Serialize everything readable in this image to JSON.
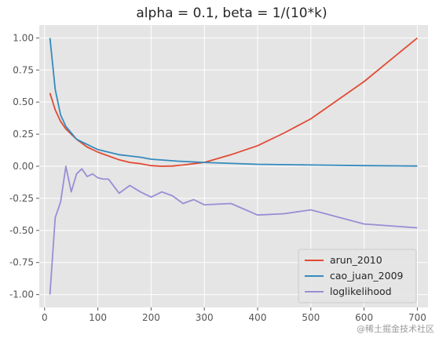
{
  "chart_data": {
    "type": "line",
    "title": "alpha = 0.1, beta = 1/(10*k)",
    "xlim": [
      -10,
      720
    ],
    "ylim": [
      -1.1,
      1.1
    ],
    "xticks": [
      0,
      100,
      200,
      300,
      400,
      500,
      600,
      700
    ],
    "yticks": [
      1.0,
      0.75,
      0.5,
      0.25,
      0.0,
      -0.25,
      -0.5,
      -0.75,
      -1.0
    ],
    "ytick_labels": [
      "1.00",
      "0.75",
      "0.50",
      "0.25",
      "0.00",
      "-0.25",
      "-0.50",
      "-0.75",
      "-1.00"
    ],
    "xtick_labels": [
      "0",
      "100",
      "200",
      "300",
      "400",
      "500",
      "600",
      "700"
    ],
    "grid": true,
    "legend_position": "bottom-right",
    "series": [
      {
        "name": "arun_2010",
        "color": "#E24A33",
        "x": [
          10,
          20,
          30,
          40,
          50,
          60,
          70,
          80,
          90,
          100,
          120,
          140,
          160,
          180,
          200,
          220,
          240,
          260,
          280,
          300,
          350,
          400,
          450,
          500,
          600,
          700
        ],
        "y": [
          0.57,
          0.44,
          0.35,
          0.29,
          0.25,
          0.21,
          0.18,
          0.15,
          0.13,
          0.11,
          0.08,
          0.05,
          0.03,
          0.02,
          0.005,
          0.0,
          0.002,
          0.01,
          0.02,
          0.03,
          0.09,
          0.16,
          0.26,
          0.37,
          0.66,
          1.0
        ]
      },
      {
        "name": "cao_juan_2009",
        "color": "#348ABD",
        "x": [
          10,
          20,
          30,
          40,
          50,
          60,
          70,
          80,
          90,
          100,
          120,
          140,
          160,
          180,
          200,
          250,
          300,
          400,
          500,
          600,
          700
        ],
        "y": [
          1.0,
          0.6,
          0.4,
          0.31,
          0.26,
          0.21,
          0.19,
          0.17,
          0.15,
          0.13,
          0.11,
          0.09,
          0.08,
          0.07,
          0.055,
          0.04,
          0.03,
          0.015,
          0.01,
          0.005,
          0.002
        ]
      },
      {
        "name": "loglikelihood",
        "color": "#988ED5",
        "x": [
          10,
          20,
          30,
          40,
          50,
          60,
          70,
          80,
          90,
          100,
          110,
          120,
          140,
          160,
          180,
          200,
          220,
          240,
          260,
          280,
          300,
          350,
          400,
          450,
          500,
          600,
          700
        ],
        "y": [
          -1.0,
          -0.4,
          -0.28,
          0.0,
          -0.2,
          -0.06,
          -0.02,
          -0.08,
          -0.06,
          -0.09,
          -0.1,
          -0.1,
          -0.21,
          -0.15,
          -0.2,
          -0.24,
          -0.2,
          -0.23,
          -0.29,
          -0.26,
          -0.3,
          -0.29,
          -0.38,
          -0.37,
          -0.34,
          -0.45,
          -0.48
        ]
      }
    ]
  },
  "watermark": "@稀土掘金技术社区"
}
